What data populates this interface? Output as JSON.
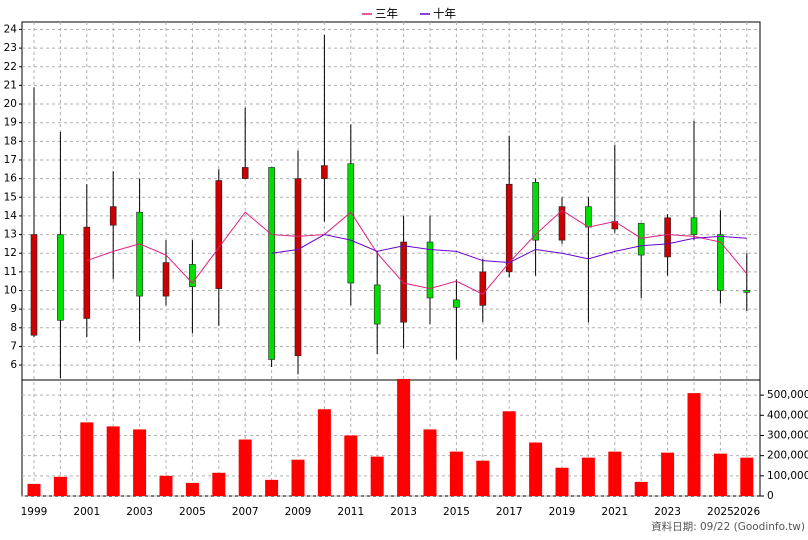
{
  "chart_data": [
    {
      "type": "candlestick",
      "up_color": "#cc0000",
      "down_color": "#00dd00",
      "grid": true,
      "ylim": [
        5.2,
        24.4
      ],
      "yticks": [
        6,
        7,
        8,
        9,
        10,
        11,
        12,
        13,
        14,
        15,
        16,
        17,
        18,
        19,
        20,
        21,
        22,
        23,
        24
      ],
      "open": [
        7.6,
        13,
        8.5,
        13.5,
        14.2,
        9.7,
        11.4,
        10.1,
        16,
        16.6,
        6.5,
        16,
        16.8,
        10.3,
        8.3,
        12.6,
        9.5,
        9.2,
        11,
        15.8,
        12.7,
        14.5,
        13.3,
        13.6,
        11.8,
        13.9,
        13,
        10
      ],
      "high": [
        20.9,
        18.5,
        15.7,
        16.4,
        16,
        12.7,
        12.7,
        16.5,
        19.8,
        16.6,
        17.5,
        23.7,
        18.9,
        12.1,
        14,
        14,
        10.6,
        11.7,
        18.3,
        16,
        15,
        15,
        17.8,
        13.6,
        14.1,
        19.1,
        14.3,
        12
      ],
      "low": [
        7.5,
        5.3,
        7.5,
        10.6,
        7.3,
        9.2,
        7.7,
        8.1,
        16,
        5.9,
        5.5,
        13.7,
        9.2,
        6.6,
        6.9,
        8.2,
        6.3,
        8.3,
        10.7,
        10.8,
        12.5,
        8.3,
        13.1,
        9.6,
        10.8,
        12.7,
        9.3,
        8.9
      ],
      "close": [
        13,
        8.4,
        13.4,
        14.5,
        9.7,
        11.5,
        10.2,
        15.9,
        16.6,
        6.3,
        16,
        16.7,
        10.4,
        8.2,
        12.6,
        9.6,
        9.1,
        11,
        15.7,
        12.7,
        14.5,
        13.4,
        13.7,
        11.9,
        13.9,
        13,
        10,
        9.9
      ],
      "series": [
        {
          "name": "三年",
          "color": "#e0207f",
          "values": [
            null,
            null,
            11.6,
            12.1,
            12.5,
            11.9,
            10.4,
            12.3,
            14.2,
            13,
            12.9,
            13,
            14.2,
            12,
            10.4,
            10.1,
            10.5,
            9.8,
            11.5,
            13,
            14.3,
            13.4,
            13.7,
            12.8,
            13,
            12.9,
            12.6,
            10.9
          ]
        },
        {
          "name": "十年",
          "color": "#6a00d0",
          "values": [
            null,
            null,
            null,
            null,
            null,
            null,
            null,
            null,
            null,
            12,
            12.2,
            13,
            12.7,
            12.1,
            12.4,
            12.2,
            12.1,
            11.6,
            11.5,
            12.2,
            12,
            11.7,
            12.1,
            12.4,
            12.5,
            12.8,
            12.9,
            12.8
          ]
        }
      ]
    },
    {
      "type": "bar",
      "color": "#ff0000",
      "grid": true,
      "categories": [
        "1999",
        null,
        "2001",
        null,
        "2003",
        null,
        "2005",
        null,
        "2007",
        null,
        "2009",
        null,
        "2011",
        null,
        "2013",
        null,
        "2015",
        null,
        "2017",
        null,
        "2019",
        null,
        "2021",
        null,
        "2023",
        null,
        "2025",
        "2026"
      ],
      "values": [
        60000,
        95000,
        365000,
        345000,
        330000,
        100000,
        65000,
        115000,
        280000,
        80000,
        180000,
        430000,
        300000,
        195000,
        580000,
        330000,
        220000,
        175000,
        420000,
        265000,
        140000,
        190000,
        220000,
        70000,
        215000,
        510000,
        210000,
        190000
      ],
      "ylim": [
        0,
        575000
      ],
      "yticks": [
        0,
        {
          "value": 100000,
          "label": "100,000"
        },
        {
          "value": 200000,
          "label": "200,000"
        },
        {
          "value": 300000,
          "label": "300,000"
        },
        {
          "value": 400000,
          "label": "400,000"
        },
        {
          "value": 500000,
          "label": "500,000"
        }
      ]
    }
  ],
  "footer": "資料日期: 09/22 (Goodinfo.tw)"
}
